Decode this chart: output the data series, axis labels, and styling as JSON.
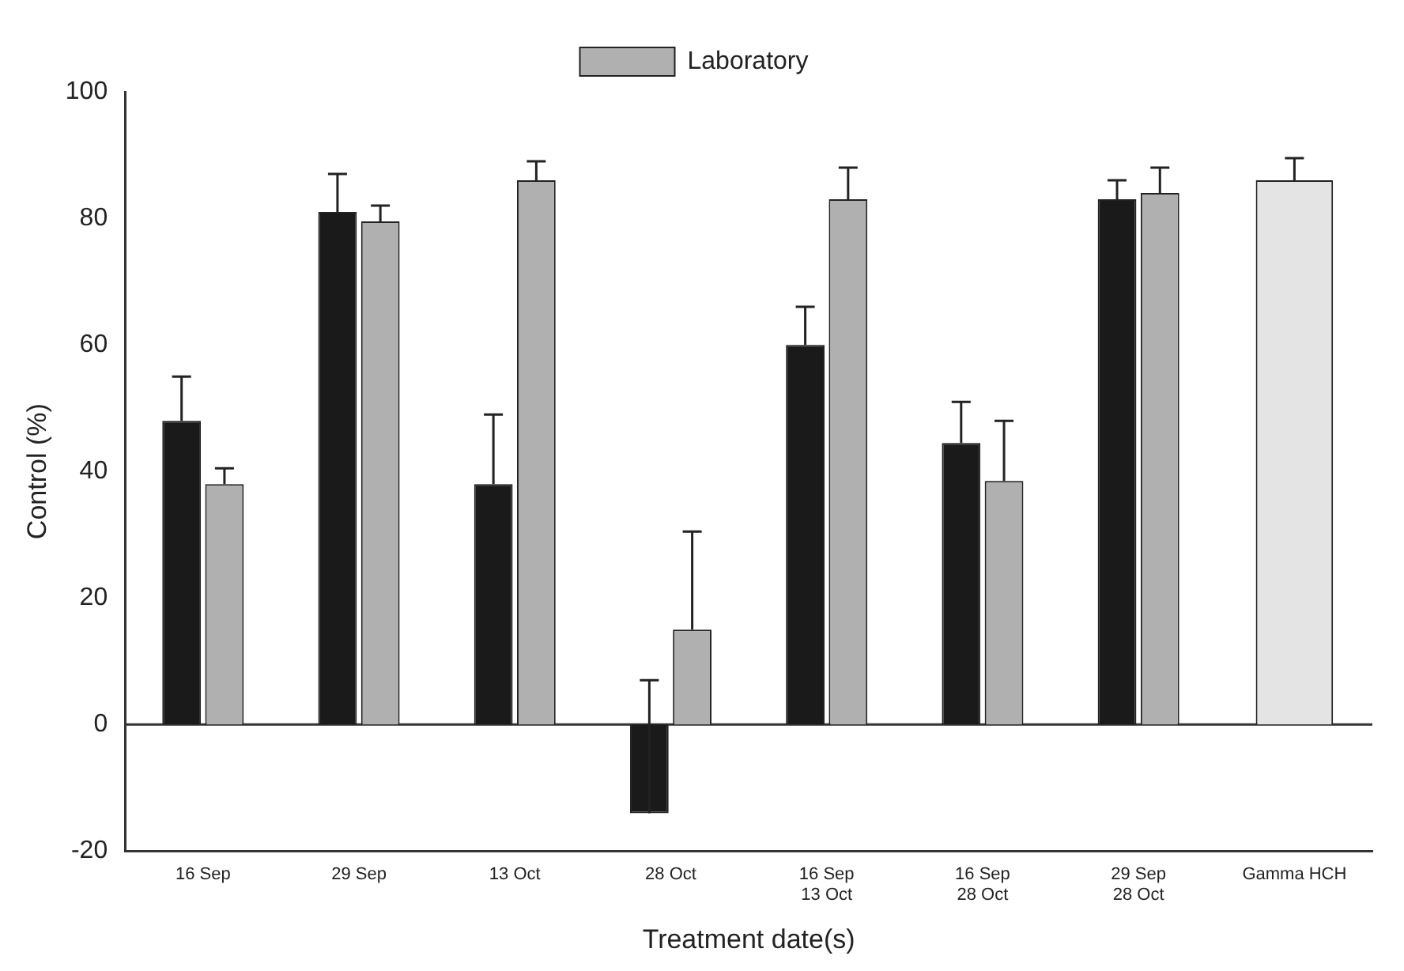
{
  "chart_data": {
    "type": "bar",
    "xlabel": "Treatment date(s)",
    "ylabel": "Control (%)",
    "categories": [
      "16 Sep",
      "29 Sep",
      "13 Oct",
      "28 Oct",
      "16 Sep\n13 Oct",
      "16 Sep\n28 Oct",
      "29 Sep\n28 Oct",
      "Gamma HCH"
    ],
    "series": [
      {
        "color": "#1a1a1a",
        "values": [
          48,
          81,
          38,
          -14,
          60,
          44.5,
          83,
          null
        ],
        "errors": [
          [
            48,
            55
          ],
          [
            81,
            87
          ],
          [
            38,
            49
          ],
          [
            -14,
            7
          ],
          [
            60,
            66
          ],
          [
            44.5,
            51
          ],
          [
            83,
            86
          ],
          null
        ]
      },
      {
        "name": "Laboratory",
        "color": "#b0b0b0",
        "values": [
          38,
          79.5,
          86,
          15,
          83,
          38.5,
          84,
          null
        ],
        "errors": [
          [
            38,
            40.5
          ],
          [
            79.5,
            82
          ],
          [
            86,
            89
          ],
          [
            15,
            30.5
          ],
          [
            83,
            88
          ],
          [
            38.5,
            48
          ],
          [
            84,
            88
          ],
          null
        ]
      },
      {
        "color": "#e4e4e4",
        "values": [
          null,
          null,
          null,
          null,
          null,
          null,
          null,
          86
        ],
        "errors": [
          null,
          null,
          null,
          null,
          null,
          null,
          null,
          [
            86,
            89.5
          ]
        ]
      }
    ],
    "ylim": [
      -20,
      100
    ],
    "yticks": [
      -20,
      0,
      20,
      40,
      60,
      80,
      100
    ],
    "ref_lines": [
      {
        "axis": "y",
        "value": 0,
        "color": "#333333"
      }
    ],
    "grid": false,
    "legend": "top"
  }
}
